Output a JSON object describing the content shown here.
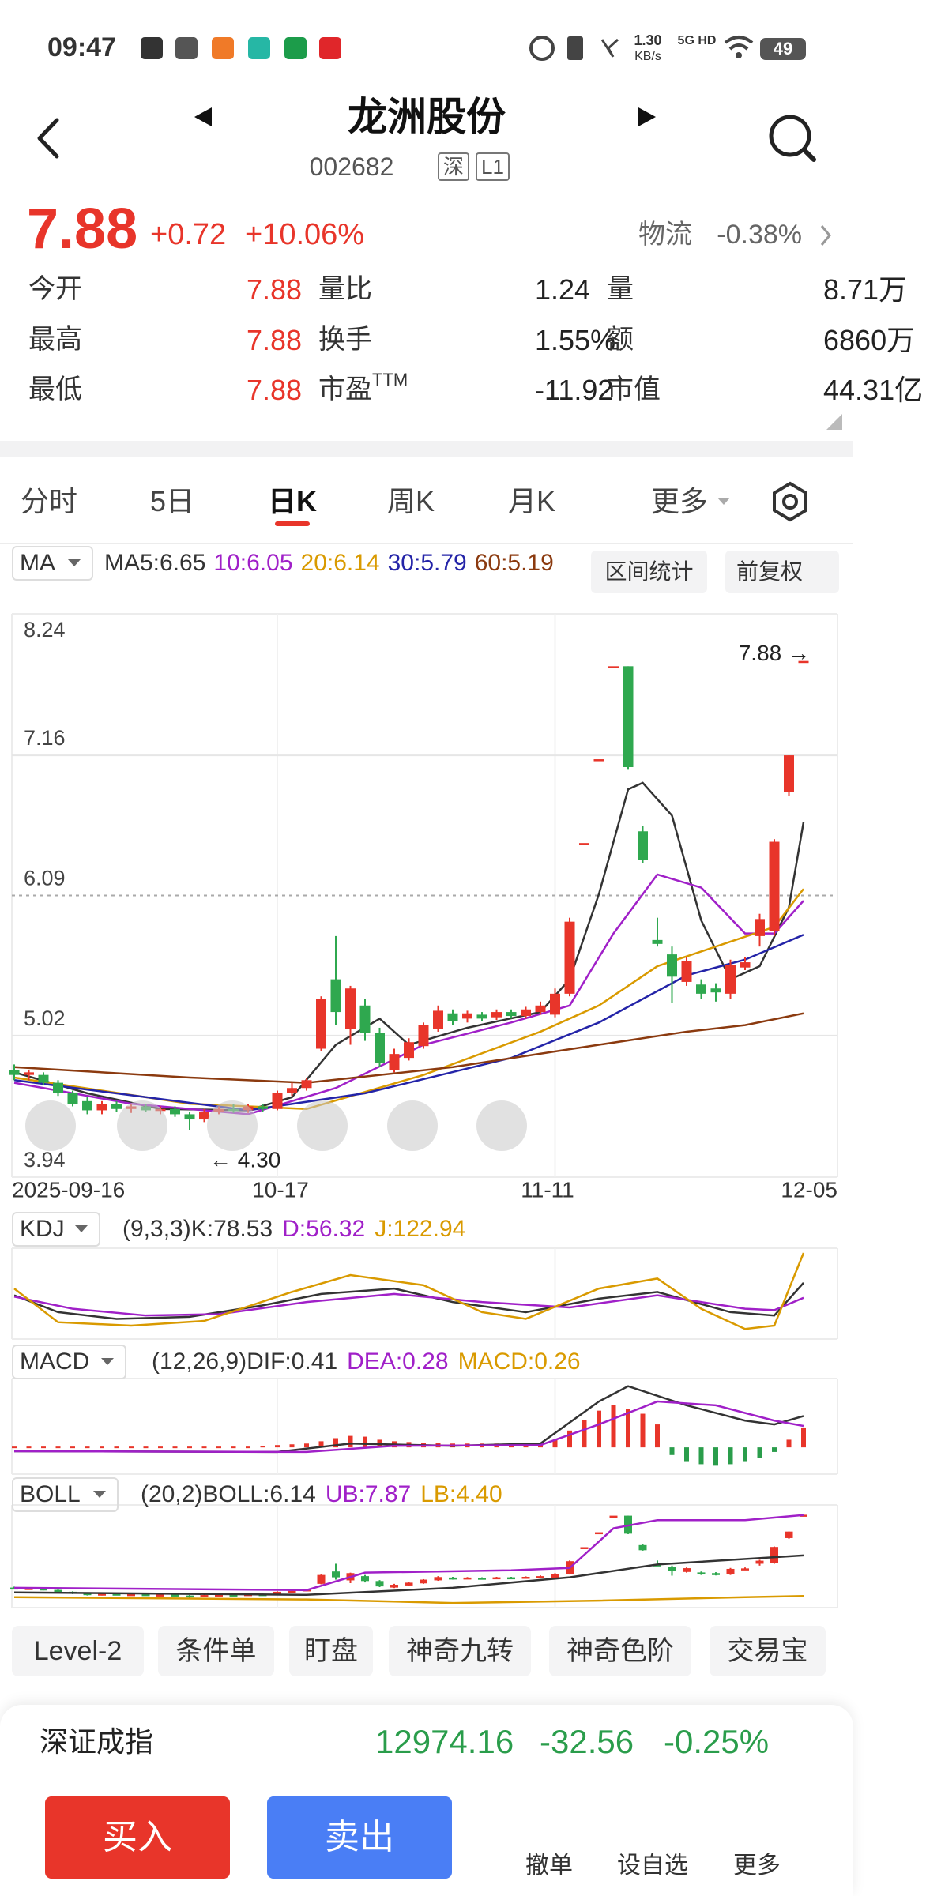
{
  "status_bar": {
    "time": "09:47",
    "speed": "1.30",
    "speed_unit": "KB/s",
    "network": "5G HD",
    "battery": "49"
  },
  "header": {
    "title": "龙洲股份",
    "code": "002682",
    "tags": [
      "深",
      "L1"
    ]
  },
  "quote": {
    "price": "7.88",
    "change": "+0.72",
    "change_pct": "+10.06%",
    "sector": "物流",
    "sector_change": "-0.38%"
  },
  "stats": [
    [
      {
        "label": "今开",
        "value": "7.88"
      },
      {
        "label": "量比",
        "value": "1.24"
      },
      {
        "label": "量",
        "value": "8.71万"
      }
    ],
    [
      {
        "label": "最高",
        "value": "7.88"
      },
      {
        "label": "换手",
        "value": "1.55%"
      },
      {
        "label": "额",
        "value": "6860万"
      }
    ],
    [
      {
        "label": "最低",
        "value": "7.88"
      },
      {
        "label": "市盈",
        "sup": "TTM",
        "value": "-11.92"
      },
      {
        "label": "市值",
        "value": "44.31亿"
      }
    ]
  ],
  "tabs": [
    "分时",
    "5日",
    "日K",
    "周K",
    "月K",
    "更多"
  ],
  "chart_data": [
    {
      "type": "candlestick",
      "indicator": "MA",
      "buttons": [
        "区间统计",
        "前复权"
      ],
      "up_color": "#e8352a",
      "down_color": "#2fa84f",
      "ylim": [
        3.94,
        8.24
      ],
      "yticks": [
        8.24,
        7.16,
        6.09,
        5.02,
        3.94
      ],
      "grid": true,
      "date_labels": [
        "2025-09-16",
        "10-17",
        "11-11",
        "12-05"
      ],
      "annotations": {
        "high": "7.88 →",
        "low": "← 4.30"
      },
      "ohlc": [
        [
          4.76,
          4.8,
          4.68,
          4.72
        ],
        [
          4.72,
          4.76,
          4.68,
          4.74
        ],
        [
          4.72,
          4.74,
          4.64,
          4.66
        ],
        [
          4.66,
          4.68,
          4.56,
          4.58
        ],
        [
          4.58,
          4.6,
          4.48,
          4.5
        ],
        [
          4.52,
          4.55,
          4.42,
          4.45
        ],
        [
          4.45,
          4.52,
          4.42,
          4.5
        ],
        [
          4.5,
          4.52,
          4.44,
          4.46
        ],
        [
          4.46,
          4.5,
          4.43,
          4.48
        ],
        [
          4.48,
          4.5,
          4.44,
          4.45
        ],
        [
          4.45,
          4.48,
          4.42,
          4.46
        ],
        [
          4.46,
          4.48,
          4.4,
          4.42
        ],
        [
          4.42,
          4.44,
          4.3,
          4.38
        ],
        [
          4.38,
          4.46,
          4.36,
          4.44
        ],
        [
          4.44,
          4.48,
          4.42,
          4.46
        ],
        [
          4.46,
          4.5,
          4.43,
          4.45
        ],
        [
          4.45,
          4.5,
          4.43,
          4.48
        ],
        [
          4.48,
          4.5,
          4.44,
          4.46
        ],
        [
          4.46,
          4.6,
          4.45,
          4.58
        ],
        [
          4.58,
          4.66,
          4.56,
          4.62
        ],
        [
          4.62,
          4.7,
          4.6,
          4.68
        ],
        [
          4.92,
          5.32,
          4.9,
          5.3
        ],
        [
          5.45,
          5.78,
          5.1,
          5.2
        ],
        [
          5.07,
          5.4,
          4.95,
          5.38
        ],
        [
          5.25,
          5.3,
          4.98,
          5.04
        ],
        [
          5.04,
          5.08,
          4.78,
          4.81
        ],
        [
          4.76,
          4.92,
          4.74,
          4.88
        ],
        [
          4.85,
          5.0,
          4.83,
          4.97
        ],
        [
          4.94,
          5.12,
          4.92,
          5.1
        ],
        [
          5.07,
          5.25,
          5.05,
          5.21
        ],
        [
          5.19,
          5.22,
          5.1,
          5.13
        ],
        [
          5.15,
          5.21,
          5.12,
          5.19
        ],
        [
          5.18,
          5.2,
          5.13,
          5.15
        ],
        [
          5.16,
          5.22,
          5.14,
          5.2
        ],
        [
          5.2,
          5.22,
          5.15,
          5.17
        ],
        [
          5.17,
          5.24,
          5.15,
          5.22
        ],
        [
          5.2,
          5.28,
          5.18,
          5.25
        ],
        [
          5.18,
          5.38,
          5.16,
          5.34
        ],
        [
          5.34,
          5.92,
          5.32,
          5.89
        ],
        [
          6.49,
          6.49,
          6.49,
          6.49
        ],
        [
          7.13,
          7.13,
          7.13,
          7.13
        ],
        [
          7.84,
          7.84,
          7.84,
          7.84
        ],
        [
          7.84,
          7.84,
          7.05,
          7.07
        ],
        [
          6.58,
          6.62,
          6.34,
          6.36
        ],
        [
          5.75,
          5.92,
          5.7,
          5.72
        ],
        [
          5.64,
          5.7,
          5.27,
          5.47
        ],
        [
          5.43,
          5.62,
          5.4,
          5.59
        ],
        [
          5.41,
          5.45,
          5.3,
          5.34
        ],
        [
          5.38,
          5.42,
          5.28,
          5.35
        ],
        [
          5.34,
          5.6,
          5.3,
          5.56
        ],
        [
          5.54,
          5.62,
          5.52,
          5.58
        ],
        [
          5.78,
          5.95,
          5.7,
          5.91
        ],
        [
          5.82,
          6.52,
          5.78,
          6.5
        ],
        [
          6.88,
          7.16,
          6.85,
          7.16
        ],
        [
          7.88,
          7.88,
          7.88,
          7.88
        ]
      ],
      "series": [
        {
          "name": "MA5:6.65",
          "color": "#333333",
          "x": [
            0,
            5,
            10,
            16,
            19,
            22,
            25,
            27,
            31,
            36,
            38,
            40,
            42,
            43,
            45,
            47,
            49,
            51,
            53,
            54
          ],
          "values": [
            4.74,
            4.58,
            4.46,
            4.45,
            4.55,
            4.95,
            5.15,
            4.95,
            5.08,
            5.2,
            5.45,
            6.1,
            6.9,
            6.95,
            6.7,
            5.9,
            5.45,
            5.55,
            6.0,
            6.65
          ]
        },
        {
          "name": "10:6.05",
          "color": "#a020c8",
          "x": [
            0,
            8,
            16,
            22,
            28,
            34,
            38,
            41,
            44,
            47,
            50,
            52,
            54
          ],
          "values": [
            4.66,
            4.5,
            4.42,
            4.62,
            4.95,
            5.12,
            5.25,
            5.8,
            6.25,
            6.15,
            5.8,
            5.8,
            6.05
          ]
        },
        {
          "name": "20:6.14",
          "color": "#d99a00",
          "x": [
            0,
            12,
            20,
            28,
            36,
            40,
            44,
            48,
            52,
            54
          ],
          "values": [
            4.7,
            4.5,
            4.46,
            4.72,
            5.05,
            5.25,
            5.55,
            5.7,
            5.85,
            6.14
          ]
        },
        {
          "name": "30:5.79",
          "color": "#2424a8",
          "x": [
            0,
            16,
            24,
            34,
            40,
            46,
            50,
            54
          ],
          "values": [
            4.68,
            4.45,
            4.58,
            4.85,
            5.12,
            5.48,
            5.6,
            5.79
          ]
        },
        {
          "name": "60:5.19",
          "color": "#8b3a0f",
          "x": [
            0,
            12,
            20,
            30,
            40,
            46,
            50,
            54
          ],
          "values": [
            4.78,
            4.7,
            4.66,
            4.78,
            4.95,
            5.05,
            5.1,
            5.19
          ]
        }
      ]
    },
    {
      "type": "line",
      "indicator": "KDJ",
      "params": "(9,3,3)",
      "ylim": [
        -5,
        130
      ],
      "series": [
        {
          "name": "K:78.53",
          "color": "#333333",
          "x": [
            0,
            3,
            7,
            12,
            17,
            21,
            26,
            30,
            35,
            40,
            44,
            49,
            52,
            54
          ],
          "values": [
            60,
            35,
            25,
            28,
            45,
            62,
            70,
            50,
            35,
            55,
            65,
            35,
            30,
            78.53
          ]
        },
        {
          "name": "D:56.32",
          "color": "#a020c8",
          "x": [
            0,
            4,
            9,
            14,
            20,
            26,
            32,
            38,
            44,
            50,
            52,
            54
          ],
          "values": [
            58,
            40,
            30,
            32,
            50,
            62,
            50,
            42,
            60,
            40,
            38,
            56.32
          ]
        },
        {
          "name": "J:122.94",
          "color": "#d99a00",
          "x": [
            0,
            3,
            8,
            13,
            19,
            23,
            28,
            32,
            35,
            40,
            44,
            47,
            50,
            52,
            54
          ],
          "values": [
            70,
            20,
            15,
            22,
            65,
            90,
            75,
            35,
            25,
            70,
            85,
            40,
            10,
            15,
            122.94
          ]
        }
      ]
    },
    {
      "type": "macd",
      "indicator": "MACD",
      "params": "(12,26,9)",
      "ylim": [
        -0.35,
        0.9
      ],
      "series": [
        {
          "name": "DIF:0.41",
          "color": "#333333",
          "x": [
            0,
            18,
            23,
            30,
            36,
            40,
            42,
            46,
            50,
            52,
            54
          ],
          "values": [
            -0.05,
            -0.06,
            0.05,
            0.02,
            0.05,
            0.6,
            0.8,
            0.55,
            0.35,
            0.3,
            0.41
          ]
        },
        {
          "name": "DEA:0.28",
          "color": "#a020c8",
          "x": [
            0,
            20,
            26,
            36,
            40,
            44,
            48,
            52,
            54
          ],
          "values": [
            -0.05,
            -0.06,
            0.02,
            0.03,
            0.3,
            0.6,
            0.55,
            0.35,
            0.28
          ]
        },
        {
          "name": "MACD:0.26",
          "color": "#d99a00",
          "values": [
            0.01,
            0.01,
            0.01,
            0.01,
            0.01,
            0.01,
            0.01,
            0.01,
            0.01,
            0.01,
            0.01,
            0.01,
            0.01,
            0.01,
            0.01,
            0.01,
            0.01,
            0.02,
            0.03,
            0.04,
            0.05,
            0.08,
            0.12,
            0.15,
            0.14,
            0.1,
            0.08,
            0.07,
            0.06,
            0.06,
            0.05,
            0.05,
            0.05,
            0.05,
            0.05,
            0.05,
            0.06,
            0.1,
            0.22,
            0.36,
            0.48,
            0.55,
            0.5,
            0.44,
            0.3,
            -0.1,
            -0.18,
            -0.22,
            -0.24,
            -0.22,
            -0.18,
            -0.14,
            -0.06,
            0.1,
            0.26
          ]
        }
      ]
    },
    {
      "type": "boll",
      "indicator": "BOLL",
      "params": "(20,2)",
      "ylim": [
        3.9,
        8.3
      ],
      "series": [
        {
          "name": "BOLL:6.14",
          "color": "#333333",
          "x": [
            0,
            20,
            30,
            38,
            44,
            54
          ],
          "values": [
            4.55,
            4.45,
            4.75,
            5.2,
            5.75,
            6.14
          ]
        },
        {
          "name": "UB:7.87",
          "color": "#a020c8",
          "x": [
            0,
            20,
            24,
            34,
            38,
            41,
            44,
            50,
            54
          ],
          "values": [
            4.75,
            4.65,
            5.4,
            5.5,
            5.6,
            7.3,
            7.65,
            7.65,
            7.87
          ]
        },
        {
          "name": "LB:4.40",
          "color": "#d99a00",
          "x": [
            0,
            20,
            30,
            40,
            50,
            54
          ],
          "values": [
            4.35,
            4.25,
            4.1,
            4.2,
            4.35,
            4.4
          ]
        }
      ]
    }
  ],
  "tools": [
    "Level-2",
    "条件单",
    "盯盘",
    "神奇九转",
    "神奇色阶",
    "交易宝"
  ],
  "index_bar": {
    "name": "深证成指",
    "value": "12974.16",
    "change": "-32.56",
    "change_pct": "-0.25%"
  },
  "actions": {
    "buy": "买入",
    "sell": "卖出",
    "icons": [
      "撤单",
      "设自选",
      "更多"
    ]
  }
}
